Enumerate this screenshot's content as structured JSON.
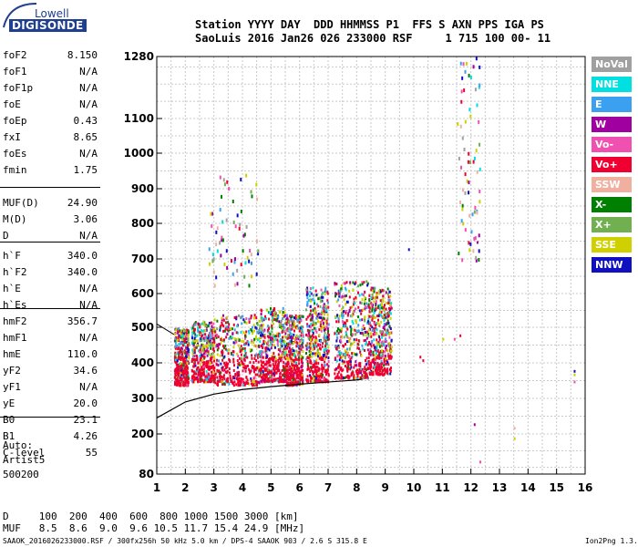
{
  "logo": {
    "line1": "Lowell",
    "line2": "DIGISONDE"
  },
  "header": {
    "line1": "Station YYYY DAY  DDD HHMMSS P1  FFS S AXN PPS IGA PS",
    "line2": "SaoLuis 2016 Jan26 026 233000 RSF     1 715 100 00- 11"
  },
  "params": [
    {
      "label": "foF2",
      "value": "8.150"
    },
    {
      "label": "foF1",
      "value": "N/A"
    },
    {
      "label": "foF1p",
      "value": "N/A"
    },
    {
      "label": "foE",
      "value": "N/A"
    },
    {
      "label": "foEp",
      "value": "0.43"
    },
    {
      "label": "fxI",
      "value": "8.65"
    },
    {
      "label": "foEs",
      "value": "N/A"
    },
    {
      "label": "fmin",
      "value": "1.75"
    },
    {
      "label": "MUF(D)",
      "value": "24.90"
    },
    {
      "label": "M(D)",
      "value": "3.06"
    },
    {
      "label": "D",
      "value": "N/A"
    },
    {
      "label": "h`F",
      "value": "340.0"
    },
    {
      "label": "h`F2",
      "value": "340.0"
    },
    {
      "label": "h`E",
      "value": "N/A"
    },
    {
      "label": "h`Es",
      "value": "N/A"
    },
    {
      "label": "hmF2",
      "value": "356.7"
    },
    {
      "label": "hmF1",
      "value": "N/A"
    },
    {
      "label": "hmE",
      "value": "110.0"
    },
    {
      "label": "yF2",
      "value": "34.6"
    },
    {
      "label": "yF1",
      "value": "N/A"
    },
    {
      "label": "yE",
      "value": "20.0"
    },
    {
      "label": "B0",
      "value": "23.1"
    },
    {
      "label": "B1",
      "value": "4.26"
    },
    {
      "label": "C-level",
      "value": "55"
    }
  ],
  "auto": {
    "line1": "Auto:",
    "line2": "Artist5",
    "line3": "500200"
  },
  "legend": [
    {
      "label": "NoVal",
      "color": "#a0a0a0"
    },
    {
      "label": "NNE",
      "color": "#00e0e0"
    },
    {
      "label": "E",
      "color": "#3ca0f0"
    },
    {
      "label": "W",
      "color": "#a000a0"
    },
    {
      "label": "Vo-",
      "color": "#f050b0"
    },
    {
      "label": "Vo+",
      "color": "#f00030"
    },
    {
      "label": "SSW",
      "color": "#f0b0a0"
    },
    {
      "label": "X-",
      "color": "#008000"
    },
    {
      "label": "X+",
      "color": "#70b050"
    },
    {
      "label": "SSE",
      "color": "#d0d000"
    },
    {
      "label": "NNW",
      "color": "#1010c0"
    }
  ],
  "bottom": {
    "d_row": "D     100  200  400  600  800 1000 1500 3000 [km]",
    "muf_row": "MUF   8.5  8.6  9.0  9.6 10.5 11.7 15.4 24.9 [MHz]",
    "footer_left": "SAAOK_2016026233000.RSF / 300fx256h 50 kHz 5.0 km / DPS-4 SAAOK 903 / 2.6 S 315.8 E",
    "footer_right": "Ion2Png 1.3.17"
  },
  "chart_data": {
    "type": "scatter",
    "x_ticks": [
      1,
      2,
      3,
      4,
      5,
      6,
      7,
      8,
      9,
      10,
      11,
      12,
      13,
      14,
      15,
      16
    ],
    "y_ticks": [
      80,
      200,
      300,
      400,
      500,
      600,
      700,
      800,
      900,
      1000,
      1100,
      1280
    ],
    "y_scale": "reciprocal-like (ionogram virtual height)",
    "xlim": [
      1,
      16
    ],
    "ylim": [
      80,
      1280
    ],
    "grid": true,
    "clusters": [
      {
        "x": [
          1.6,
          2.1
        ],
        "y": [
          340,
          500
        ],
        "mode": "mixed"
      },
      {
        "x": [
          2.2,
          3.0
        ],
        "y": [
          350,
          520
        ],
        "mode": "mixed"
      },
      {
        "x": [
          3.0,
          4.6
        ],
        "y": [
          340,
          540
        ],
        "mode": "mixed"
      },
      {
        "x": [
          4.6,
          5.5
        ],
        "y": [
          350,
          560
        ],
        "mode": "mixed"
      },
      {
        "x": [
          5.5,
          6.1
        ],
        "y": [
          340,
          540
        ],
        "mode": "mixed"
      },
      {
        "x": [
          6.2,
          7.0
        ],
        "y": [
          350,
          620
        ],
        "mode": "mixed"
      },
      {
        "x": [
          7.2,
          8.4
        ],
        "y": [
          360,
          640
        ],
        "mode": "mixed"
      },
      {
        "x": [
          8.4,
          9.2
        ],
        "y": [
          370,
          620
        ],
        "mode": "mixed"
      },
      {
        "x": [
          2.8,
          4.6
        ],
        "y": [
          620,
          950
        ],
        "mode": "sparse"
      },
      {
        "x": [
          11.5,
          12.3
        ],
        "y": [
          700,
          1280
        ],
        "mode": "sparse"
      }
    ],
    "trace_curve": [
      [
        1,
        245
      ],
      [
        2,
        290
      ],
      [
        3,
        312
      ],
      [
        4,
        325
      ],
      [
        5,
        333
      ],
      [
        6,
        340
      ],
      [
        7,
        346
      ],
      [
        8,
        352
      ],
      [
        8.2,
        354
      ]
    ]
  }
}
